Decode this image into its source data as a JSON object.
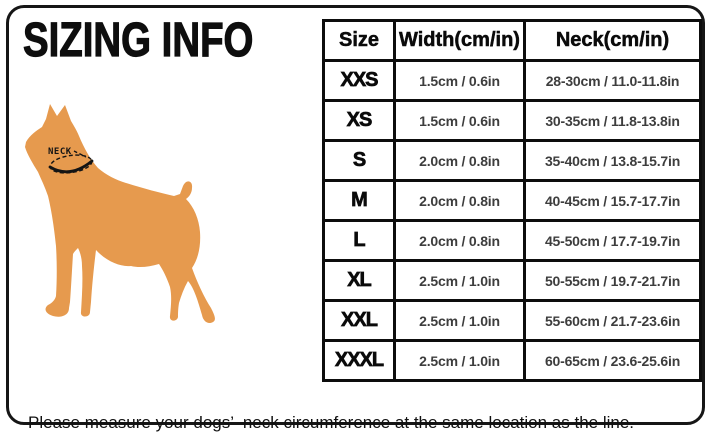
{
  "page": {
    "title": "SIZING INFO",
    "note": "Please measure your dogs’  neck circumference at the same location as the line.",
    "neck_label": "NECK"
  },
  "colors": {
    "dog": "#E69A4E",
    "frame_border": "#161616",
    "table_border": "#0d0d0d",
    "data_text": "#3d3d3d"
  },
  "table": {
    "headers": [
      "Size",
      "Width(cm/in)",
      "Neck(cm/in)"
    ],
    "rows": [
      [
        "XXS",
        "1.5cm / 0.6in",
        "28-30cm / 11.0-11.8in"
      ],
      [
        "XS",
        "1.5cm / 0.6in",
        "30-35cm / 11.8-13.8in"
      ],
      [
        "S",
        "2.0cm / 0.8in",
        "35-40cm / 13.8-15.7in"
      ],
      [
        "M",
        "2.0cm / 0.8in",
        "40-45cm / 15.7-17.7in"
      ],
      [
        "L",
        "2.0cm / 0.8in",
        "45-50cm / 17.7-19.7in"
      ],
      [
        "XL",
        "2.5cm / 1.0in",
        "50-55cm / 19.7-21.7in"
      ],
      [
        "XXL",
        "2.5cm / 1.0in",
        "55-60cm / 21.7-23.6in"
      ],
      [
        "XXXL",
        "2.5cm / 1.0in",
        "60-65cm / 23.6-25.6in"
      ]
    ]
  }
}
